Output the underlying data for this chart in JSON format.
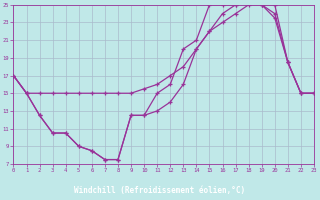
{
  "xlabel": "Windchill (Refroidissement éolien,°C)",
  "bg_color": "#c0e8e8",
  "grid_color": "#aabbcc",
  "line_color": "#993399",
  "xlabel_bg": "#7755aa",
  "xlabel_fg": "#ffffff",
  "xmin": 0,
  "xmax": 23,
  "ymin": 7,
  "ymax": 25,
  "yticks": [
    7,
    9,
    11,
    13,
    15,
    17,
    19,
    21,
    23,
    25
  ],
  "xticks": [
    0,
    1,
    2,
    3,
    4,
    5,
    6,
    7,
    8,
    9,
    10,
    11,
    12,
    13,
    14,
    15,
    16,
    17,
    18,
    19,
    20,
    21,
    22,
    23
  ],
  "series1_x": [
    0,
    1,
    2,
    3,
    4,
    5,
    6,
    7,
    8,
    9,
    10,
    11,
    12,
    13,
    14,
    15,
    16,
    17,
    18,
    19,
    20,
    21,
    22,
    23
  ],
  "series1_y": [
    17,
    15,
    15,
    15,
    15,
    15,
    15,
    15,
    15,
    15,
    15.5,
    16,
    17,
    18,
    20,
    22,
    23,
    24,
    25,
    25,
    24,
    18.5,
    15,
    15
  ],
  "series2_x": [
    0,
    1,
    2,
    3,
    4,
    5,
    6,
    7,
    8,
    9,
    10,
    11,
    12,
    13,
    14,
    15,
    16,
    17,
    18,
    19,
    20,
    21,
    22,
    23
  ],
  "series2_y": [
    17,
    15,
    12.5,
    10.5,
    10.5,
    9,
    8.5,
    7.5,
    7.5,
    12.5,
    12.5,
    15,
    16,
    20,
    21,
    25,
    25,
    25,
    25.5,
    25,
    25,
    18.5,
    15,
    15
  ],
  "series3_x": [
    0,
    1,
    2,
    3,
    4,
    5,
    6,
    7,
    8,
    9,
    10,
    11,
    12,
    13,
    14,
    15,
    16,
    17,
    18,
    19,
    20,
    21,
    22,
    23
  ],
  "series3_y": [
    17,
    15,
    12.5,
    10.5,
    10.5,
    9,
    8.5,
    7.5,
    7.5,
    12.5,
    12.5,
    13,
    14,
    16,
    20,
    22,
    24,
    25,
    25.5,
    25,
    23.5,
    18.5,
    15,
    15
  ]
}
